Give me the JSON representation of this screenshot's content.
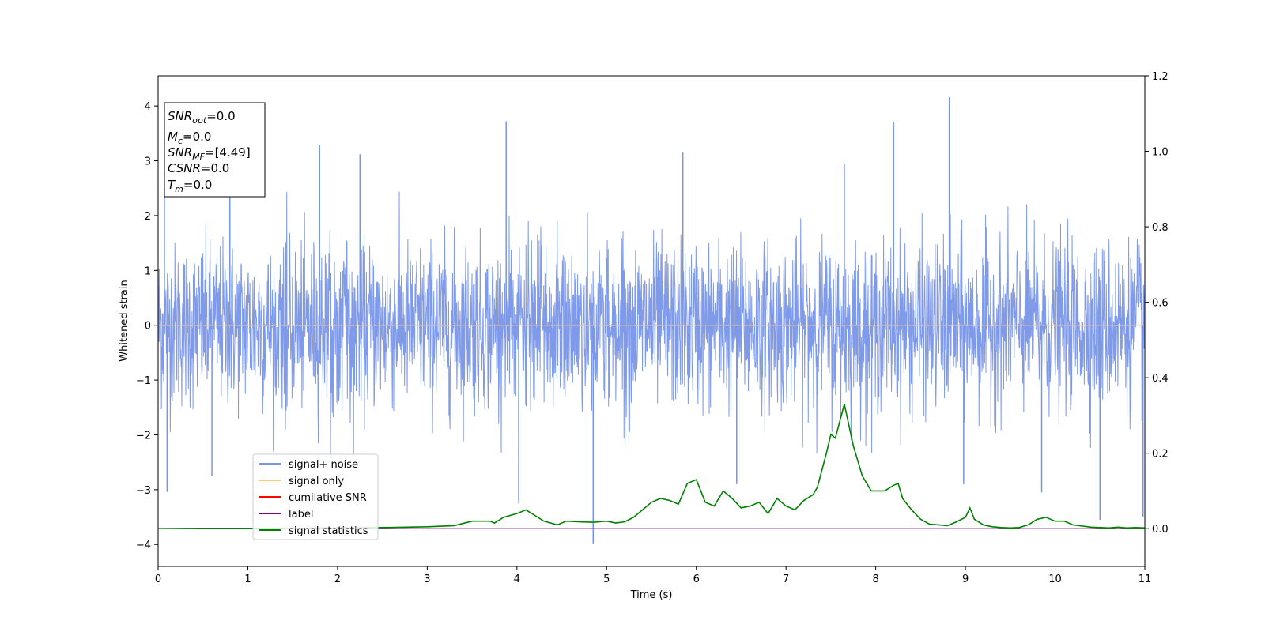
{
  "chart_data": {
    "type": "line",
    "xlabel": "Time (s)",
    "ylabel": "Whitened strain",
    "xlim": [
      0,
      11
    ],
    "ylim_left": [
      -4.4,
      4.55
    ],
    "ylim_right": [
      -0.1,
      1.2
    ],
    "x_ticks": [
      "0",
      "1",
      "2",
      "3",
      "4",
      "5",
      "6",
      "7",
      "8",
      "9",
      "10",
      "11"
    ],
    "y_left_ticks": [
      "4",
      "3",
      "2",
      "1",
      "0",
      "−1",
      "−2",
      "−3",
      "−4"
    ],
    "y_right_ticks": [
      "1.2",
      "1.0",
      "0.8",
      "0.6",
      "0.4",
      "0.2",
      "0.0"
    ],
    "info_box": {
      "snr_opt": {
        "main": "SNR",
        "sub": "opt",
        "value": "=0.0"
      },
      "mc": {
        "main": "M",
        "sub": "c",
        "value": "=0.0"
      },
      "snr_mf": {
        "main": "SNR",
        "sub": "MF",
        "value": "=[4.49]"
      },
      "csnr": {
        "main": "CSNR",
        "sub": "",
        "value": "=0.0"
      },
      "tm": {
        "main": "T",
        "sub": "m",
        "value": "=0.0"
      }
    },
    "legend": {
      "placement": "lower-left",
      "entries": [
        {
          "label": "signal+ noise",
          "color": "#7895e8"
        },
        {
          "label": "signal only",
          "color": "#ffc87a"
        },
        {
          "label": "cumilative SNR",
          "color": "#ff0000"
        },
        {
          "label": "label",
          "color": "#800080"
        },
        {
          "label": "signal statistics",
          "color": "#008000"
        }
      ]
    },
    "series": [
      {
        "name": "signal+ noise",
        "axis": "left",
        "color": "#7895e8",
        "description_values": {
          "band_rms": 1.2,
          "max": 4.16,
          "min": -3.98
        },
        "x_spikes": [
          0.07,
          0.1,
          0.6,
          0.8,
          1.8,
          2.25,
          3.88,
          4.02,
          4.85,
          5.85,
          6.45,
          7.65,
          8.2,
          8.82,
          8.98,
          9.85,
          10.5,
          10.98
        ],
        "y_spikes": [
          2.5,
          -3.04,
          -2.75,
          2.35,
          3.28,
          3.12,
          3.72,
          -3.25,
          -3.98,
          3.15,
          -2.9,
          2.95,
          3.7,
          4.16,
          -2.9,
          -3.05,
          -3.55,
          -3.5
        ]
      },
      {
        "name": "signal only",
        "axis": "left",
        "color": "#ffc87a",
        "x": [
          0,
          11
        ],
        "y": [
          0,
          0
        ]
      },
      {
        "name": "label",
        "axis": "right",
        "color": "#800080",
        "x": [
          0,
          11
        ],
        "y": [
          0,
          0
        ]
      },
      {
        "name": "signal statistics",
        "axis": "right",
        "color": "#008000",
        "x": [
          0,
          0.5,
          1,
          1.5,
          2,
          2.5,
          3,
          3.3,
          3.5,
          3.7,
          3.75,
          3.85,
          4.0,
          4.1,
          4.2,
          4.3,
          4.45,
          4.55,
          4.7,
          4.85,
          5.0,
          5.1,
          5.2,
          5.3,
          5.4,
          5.5,
          5.6,
          5.7,
          5.8,
          5.9,
          6.0,
          6.1,
          6.2,
          6.3,
          6.4,
          6.5,
          6.6,
          6.7,
          6.8,
          6.9,
          7.0,
          7.1,
          7.2,
          7.3,
          7.35,
          7.45,
          7.5,
          7.55,
          7.65,
          7.75,
          7.85,
          7.95,
          8.1,
          8.2,
          8.25,
          8.3,
          8.4,
          8.5,
          8.6,
          8.7,
          8.8,
          8.9,
          9.0,
          9.05,
          9.1,
          9.2,
          9.3,
          9.4,
          9.5,
          9.6,
          9.7,
          9.8,
          9.9,
          10.0,
          10.1,
          10.2,
          10.3,
          10.4,
          10.5,
          10.6,
          10.7,
          10.8,
          10.9,
          11.0
        ],
        "y": [
          0.0,
          0.001,
          0.001,
          0.001,
          0.002,
          0.003,
          0.005,
          0.008,
          0.02,
          0.02,
          0.015,
          0.03,
          0.04,
          0.05,
          0.035,
          0.02,
          0.01,
          0.02,
          0.018,
          0.017,
          0.02,
          0.015,
          0.018,
          0.03,
          0.05,
          0.07,
          0.08,
          0.075,
          0.065,
          0.12,
          0.13,
          0.07,
          0.06,
          0.1,
          0.08,
          0.055,
          0.06,
          0.07,
          0.04,
          0.08,
          0.06,
          0.05,
          0.075,
          0.09,
          0.11,
          0.2,
          0.25,
          0.24,
          0.33,
          0.22,
          0.14,
          0.1,
          0.1,
          0.115,
          0.12,
          0.08,
          0.05,
          0.025,
          0.012,
          0.01,
          0.008,
          0.018,
          0.03,
          0.055,
          0.025,
          0.01,
          0.005,
          0.003,
          0.002,
          0.003,
          0.01,
          0.025,
          0.03,
          0.02,
          0.02,
          0.01,
          0.007,
          0.004,
          0.003,
          0.002,
          0.004,
          0.002,
          0.003,
          0.002
        ]
      }
    ]
  }
}
